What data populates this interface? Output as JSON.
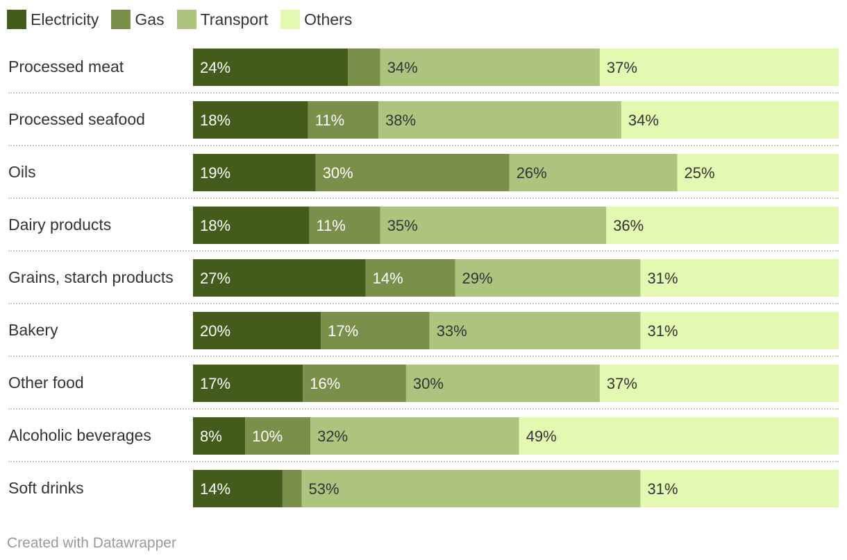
{
  "chart_data": {
    "type": "bar",
    "orientation": "horizontal",
    "stacked": true,
    "categories": [
      "Processed meat",
      "Processed seafood",
      "Oils",
      "Dairy products",
      "Grains, starch products",
      "Bakery",
      "Other food",
      "Alcoholic beverages",
      "Soft drinks"
    ],
    "series": [
      {
        "name": "Electricity",
        "color": "#445c1b",
        "values": [
          24,
          18,
          19,
          18,
          27,
          20,
          17,
          8,
          14
        ]
      },
      {
        "name": "Gas",
        "color": "#7a8f49",
        "values": [
          5,
          11,
          30,
          11,
          14,
          17,
          16,
          10,
          3
        ]
      },
      {
        "name": "Transport",
        "color": "#adc47f",
        "values": [
          34,
          38,
          26,
          35,
          29,
          33,
          30,
          32,
          53
        ]
      },
      {
        "name": "Others",
        "color": "#e3f8b0",
        "values": [
          37,
          34,
          25,
          36,
          31,
          31,
          37,
          49,
          31
        ]
      }
    ],
    "data_labels": [
      [
        "24%",
        "",
        "34%",
        "37%"
      ],
      [
        "18%",
        "11%",
        "38%",
        "34%"
      ],
      [
        "19%",
        "30%",
        "26%",
        "25%"
      ],
      [
        "18%",
        "11%",
        "35%",
        "36%"
      ],
      [
        "27%",
        "14%",
        "29%",
        "31%"
      ],
      [
        "20%",
        "17%",
        "33%",
        "31%"
      ],
      [
        "17%",
        "16%",
        "30%",
        "37%"
      ],
      [
        "8%",
        "10%",
        "32%",
        "49%"
      ],
      [
        "14%",
        "",
        "53%",
        "31%"
      ]
    ],
    "label_colors": [
      "#ffffff",
      "#ffffff",
      "#333333",
      "#333333"
    ],
    "xlim": [
      0,
      100
    ],
    "legend": "top-left"
  },
  "footer": "Created with Datawrapper"
}
